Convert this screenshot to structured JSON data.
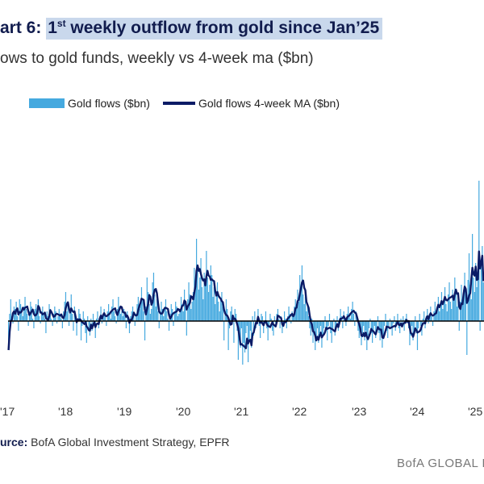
{
  "header": {
    "title_prefix": "art 6:",
    "title_highlight_1": "1",
    "title_highlight_sup": "st",
    "title_highlight_2": " weekly outflow from gold since Jan’25",
    "subtitle": "ows to gold funds, weekly vs 4-week ma ($bn)"
  },
  "footer": {
    "source_label": "urce:",
    "source_text": " BofA Global Investment Strategy, EPFR",
    "watermark": "BofA GLOBAL R"
  },
  "colors": {
    "bars": "#45a9df",
    "ma_line": "#0b1b66",
    "zero_line": "#000000"
  },
  "chart_data": {
    "type": "bar",
    "title": "",
    "xlabel": "",
    "ylabel": "",
    "legend_position": "top-left",
    "grid": false,
    "ylim": [
      -2.5,
      9.0
    ],
    "x_tick_labels": [
      "'17",
      "'18",
      "'19",
      "'20",
      "'21",
      "'22",
      "'23",
      "'24",
      "'25"
    ],
    "series": [
      {
        "name": "Gold flows ($bn)",
        "kind": "bar",
        "x_start": "2017-01",
        "frequency": "weekly",
        "values_bn": [
          -1.2,
          0.3,
          0.9,
          0.2,
          -0.1,
          0.6,
          0.5,
          0.8,
          0.2,
          -0.4,
          0.9,
          0.7,
          0.4,
          0.2,
          0.6,
          1.0,
          0.5,
          0.3,
          -0.2,
          0.4,
          0.8,
          0.6,
          0.1,
          -0.3,
          0.5,
          0.7,
          0.4,
          0.9,
          0.2,
          -0.1,
          0.4,
          0.6,
          0.3,
          0.1,
          -0.5,
          0.4,
          0.2,
          0.7,
          0.5,
          0.1,
          -0.2,
          0.3,
          0.6,
          0.4,
          -0.1,
          0.2,
          0.5,
          0.3,
          0.1,
          -0.3,
          0.4,
          0.8,
          1.2,
          0.4,
          0.7,
          -0.2,
          0.5,
          1.1,
          0.3,
          -0.4,
          0.6,
          0.2,
          -0.6,
          0.1,
          0.5,
          0.3,
          -0.8,
          -0.2,
          0.4,
          0.1,
          -0.5,
          -0.9,
          0.2,
          -0.3,
          -0.6,
          0.1,
          -0.4,
          0.3,
          -0.2,
          -0.7,
          0.1,
          0.4,
          -0.3,
          0.2,
          0.6,
          -0.1,
          0.3,
          0.5,
          0.2,
          -0.2,
          0.4,
          0.7,
          0.3,
          0.1,
          0.6,
          0.9,
          0.4,
          0.2,
          -0.1,
          0.5,
          1.0,
          0.6,
          0.3,
          0.4,
          0.2,
          0.5,
          0.3,
          -0.3,
          0.4,
          0.1,
          -0.5,
          0.2,
          0.4,
          0.6,
          0.2,
          -0.2,
          0.3,
          0.7,
          1.0,
          0.5,
          0.8,
          1.4,
          0.9,
          0.4,
          -0.8,
          0.6,
          1.8,
          1.2,
          0.7,
          0.3,
          0.5,
          1.6,
          2.0,
          1.1,
          0.6,
          0.9,
          0.4,
          -0.3,
          0.3,
          0.8,
          0.5,
          0.2,
          0.6,
          0.9,
          0.4,
          0.1,
          -0.4,
          0.3,
          0.7,
          0.5,
          -0.2,
          0.4,
          0.8,
          0.6,
          0.2,
          0.3,
          0.5,
          1.0,
          0.7,
          0.4,
          1.3,
          0.8,
          -0.6,
          0.9,
          1.6,
          1.1,
          0.5,
          0.8,
          1.2,
          2.2,
          1.5,
          3.4,
          2.1,
          1.3,
          1.8,
          2.6,
          1.4,
          0.9,
          2.0,
          1.6,
          2.9,
          1.8,
          1.2,
          1.5,
          2.3,
          1.9,
          1.0,
          1.4,
          0.7,
          1.1,
          1.6,
          0.8,
          0.4,
          0.9,
          1.2,
          0.6,
          -0.8,
          0.3,
          0.9,
          0.5,
          -1.2,
          -0.3,
          0.4,
          0.6,
          0.2,
          -0.9,
          0.5,
          0.3,
          -0.4,
          -1.6,
          -0.8,
          -1.1,
          -0.3,
          -1.8,
          -0.9,
          -1.3,
          -0.5,
          -0.2,
          -1.7,
          -0.8,
          -0.4,
          -1.1,
          0.2,
          -0.6,
          0.4,
          -0.3,
          0.1,
          0.5,
          -0.2,
          -0.7,
          0.3,
          0.2,
          -0.5,
          -0.1,
          0.4,
          -0.3,
          -0.8,
          -0.2,
          0.3,
          0.1,
          -0.4,
          -0.6,
          0.2,
          -0.1,
          0.3,
          0.5,
          0.1,
          -0.3,
          0.2,
          -0.5,
          -0.2,
          0.4,
          0.1,
          -0.3,
          0.2,
          0.6,
          0.3,
          -0.1,
          0.4,
          0.2,
          0.6,
          0.9,
          0.5,
          1.3,
          0.8,
          1.9,
          1.4,
          2.3,
          1.1,
          0.7,
          1.0,
          0.4,
          0.6,
          0.2,
          -0.3,
          -0.6,
          0.1,
          -0.9,
          -0.4,
          -1.2,
          -0.7,
          -0.3,
          -0.9,
          -0.5,
          -0.2,
          -1.1,
          -0.6,
          -0.3,
          0.2,
          -0.4,
          -0.8,
          -0.2,
          0.3,
          -0.5,
          -0.9,
          -0.3,
          0.1,
          -0.6,
          -0.2,
          0.2,
          -0.4,
          0.1,
          0.5,
          0.2,
          -0.3,
          0.4,
          0.1,
          -0.2,
          0.3,
          0.6,
          0.2,
          0.1,
          0.5,
          0.8,
          0.3,
          -0.2,
          0.4,
          0.2,
          -0.4,
          -0.7,
          -0.3,
          -1.0,
          -0.5,
          -0.2,
          -0.8,
          -0.4,
          -1.2,
          -0.6,
          -0.3,
          0.1,
          -0.5,
          -0.9,
          -0.4,
          -0.2,
          -0.7,
          -0.3,
          0.2,
          -0.5,
          -0.8,
          -0.3,
          -1.1,
          -0.6,
          -0.2,
          0.3,
          -0.4,
          -0.7,
          -0.2,
          0.1,
          -0.3,
          -0.6,
          -0.1,
          0.2,
          -0.4,
          -0.2,
          0.3,
          -0.3,
          -0.5,
          0.1,
          -0.2,
          0.2,
          -0.4,
          0.1,
          0.3,
          -0.1,
          -0.3,
          -1.0,
          -0.6,
          -0.2,
          -0.8,
          -0.4,
          0.2,
          -0.5,
          -1.2,
          -0.3,
          0.3,
          -0.2,
          -0.6,
          0.1,
          0.4,
          -0.3,
          0.2,
          0.5,
          -0.1,
          0.3,
          0.6,
          0.2,
          -0.2,
          0.4,
          0.8,
          0.3,
          0.6,
          1.0,
          0.4,
          0.7,
          1.2,
          0.5,
          0.9,
          1.4,
          0.7,
          0.4,
          1.1,
          1.6,
          0.8,
          0.5,
          1.3,
          0.9,
          1.8,
          1.2,
          0.6,
          1.0,
          -0.4,
          0.8,
          1.5,
          0.9,
          1.3,
          2.0,
          1.1,
          -1.4,
          1.7,
          2.8,
          1.5,
          0.9,
          3.6,
          1.8,
          1.2,
          2.4,
          1.4,
          1.9,
          5.8,
          -0.4,
          2.3,
          3.1,
          1.6
        ],
        "note": "Values estimated from gridless chart; start of 2017 through spring 2025."
      },
      {
        "name": "Gold flows 4-week MA ($bn)",
        "kind": "line",
        "derived_from": "4-week moving average of Gold flows ($bn)"
      }
    ]
  }
}
